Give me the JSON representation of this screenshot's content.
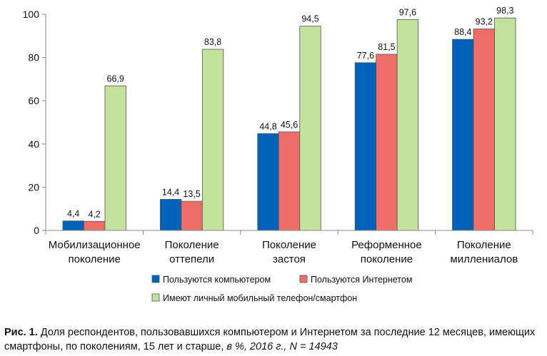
{
  "chart_data": {
    "type": "bar",
    "categories": [
      [
        "Мобилизационное",
        "поколение"
      ],
      [
        "Поколение",
        "оттепели"
      ],
      [
        "Поколение",
        "застоя"
      ],
      [
        "Реформенное",
        "поколение"
      ],
      [
        "Поколение",
        "миллениалов"
      ]
    ],
    "series": [
      {
        "name": "Пользуются компьютером",
        "values": [
          4.4,
          14.4,
          44.8,
          77.6,
          88.4
        ],
        "labels": [
          "4,4",
          "14,4",
          "44,8",
          "77,6",
          "88,4"
        ],
        "color": "#0062b8"
      },
      {
        "name": "Пользуются Интернетом",
        "values": [
          4.2,
          13.5,
          45.6,
          81.5,
          93.2
        ],
        "labels": [
          "4,2",
          "13,5",
          "45,6",
          "81,5",
          "93,2"
        ],
        "color": "#ef6d68"
      },
      {
        "name": "Имеют личный мобильный телефон/смартфон",
        "values": [
          66.9,
          83.8,
          94.5,
          97.6,
          98.3
        ],
        "labels": [
          "66,9",
          "83,8",
          "94,5",
          "97,6",
          "98,3"
        ],
        "color": "#c3e29e"
      }
    ],
    "yticks": [
      "0",
      "20",
      "40",
      "60",
      "80",
      "100"
    ],
    "ylim": [
      0,
      100
    ],
    "grid": false,
    "legend_position": "bottom"
  },
  "caption": {
    "fig_label": "Рис. 1.",
    "text": " Доля респондентов, пользовавшихся компьютером и Интернетом за последние 12 месяцев, имеющих смартфоны, по поколениям, 15 лет и старше,",
    "italic_text": " в %, 2016 г., N = 14943"
  }
}
